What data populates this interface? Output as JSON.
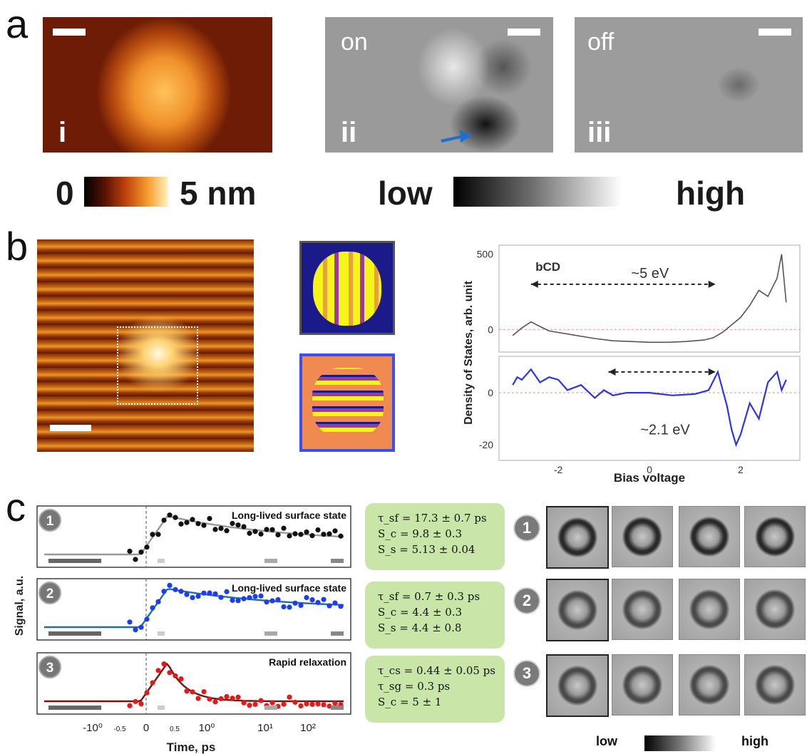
{
  "panels": {
    "a": {
      "letter": "a",
      "tiles": [
        {
          "roman": "i"
        },
        {
          "roman": "ii",
          "mode": "on"
        },
        {
          "roman": "iii",
          "mode": "off"
        }
      ],
      "height_colorbar": {
        "min_label": "0",
        "max_label": "5 nm"
      },
      "contrast_colorbar": {
        "low_label": "low",
        "high_label": "high"
      }
    },
    "b": {
      "letter": "b",
      "chart_data": [
        {
          "type": "line",
          "annotation_label": "bCD",
          "gap_label": "~5 eV",
          "yticks": [
            "500",
            "0"
          ],
          "series": [
            {
              "name": "",
              "color": "#555555",
              "x": [
                -3.0,
                -2.8,
                -2.6,
                -2.4,
                -2.2,
                -2.0,
                -1.6,
                -1.2,
                -0.8,
                -0.4,
                0,
                0.4,
                0.8,
                1.2,
                1.4,
                1.6,
                1.8,
                2.0,
                2.2,
                2.4,
                2.6,
                2.8,
                2.9,
                3.0
              ],
              "y": [
                -40,
                10,
                50,
                20,
                -10,
                -20,
                -40,
                -60,
                -75,
                -80,
                -85,
                -85,
                -80,
                -70,
                -55,
                -20,
                30,
                80,
                160,
                260,
                220,
                340,
                500,
                180
              ]
            }
          ]
        },
        {
          "type": "line",
          "gap_label": "~2.1 eV",
          "yticks": [
            "0",
            "-20"
          ],
          "series": [
            {
              "name": "",
              "color": "#2b35e8",
              "x": [
                -3.0,
                -2.9,
                -2.8,
                -2.6,
                -2.4,
                -2.2,
                -2.0,
                -1.8,
                -1.5,
                -1.2,
                -1.0,
                -0.8,
                -0.5,
                0,
                0.5,
                1.0,
                1.3,
                1.5,
                1.7,
                1.8,
                1.9,
                2.0,
                2.2,
                2.4,
                2.6,
                2.8,
                2.9,
                3.0
              ],
              "y": [
                3,
                6,
                5,
                9,
                4,
                6,
                5,
                1,
                3,
                -2,
                1,
                -1,
                0,
                0,
                -1,
                -0.5,
                1,
                8,
                -5,
                -14,
                -20,
                -16,
                -4,
                -10,
                4,
                8,
                1,
                5
              ]
            }
          ]
        }
      ],
      "axes": {
        "ylabel": "Density of States, arb. unit",
        "xlabel": "Bias voltage",
        "xticks": [
          "-2",
          "0",
          "2"
        ]
      }
    },
    "c": {
      "letter": "c",
      "chart_data": [
        {
          "type": "scatter",
          "index": "1",
          "title": "Long-lived surface state",
          "color": "#111111",
          "fit_color": "#9a9a9a"
        },
        {
          "type": "scatter",
          "index": "2",
          "title": "Long-lived surface state",
          "color": "#1f3df0",
          "fit_color": "#1e6fa8"
        },
        {
          "type": "scatter",
          "index": "3",
          "title": "Rapid relaxation",
          "color": "#e31a1a",
          "fit_color": "#7a1010"
        }
      ],
      "axes": {
        "ylabel": "Signal, a.u.",
        "xlabel": "Time, ps",
        "xticks": [
          "-10⁰",
          "-0.5",
          "0",
          "0.5",
          "10⁰",
          "10¹",
          "10²"
        ]
      },
      "fit_params": [
        [
          "τ_sf = 17.3 ± 0.7 ps",
          "S_c = 9.8 ± 0.3",
          "S_s = 5.13 ± 0.04"
        ],
        [
          "τ_sf = 0.7 ± 0.3 ps",
          "S_c = 4.4 ± 0.3",
          "S_s = 4.4 ± 0.8"
        ],
        [
          "τ_cs = 0.44 ± 0.05 ps",
          "τ_sg = 0.3 ps",
          "S_c = 5 ± 1"
        ]
      ],
      "row_labels": [
        "1",
        "2",
        "3"
      ],
      "contrast_colorbar": {
        "low_label": "low",
        "high_label": "high"
      }
    }
  },
  "colors": {
    "hot": "#b85a10",
    "green_box": "#c9e6a8",
    "blue": "#2b35e8",
    "red": "#e31a1a"
  }
}
